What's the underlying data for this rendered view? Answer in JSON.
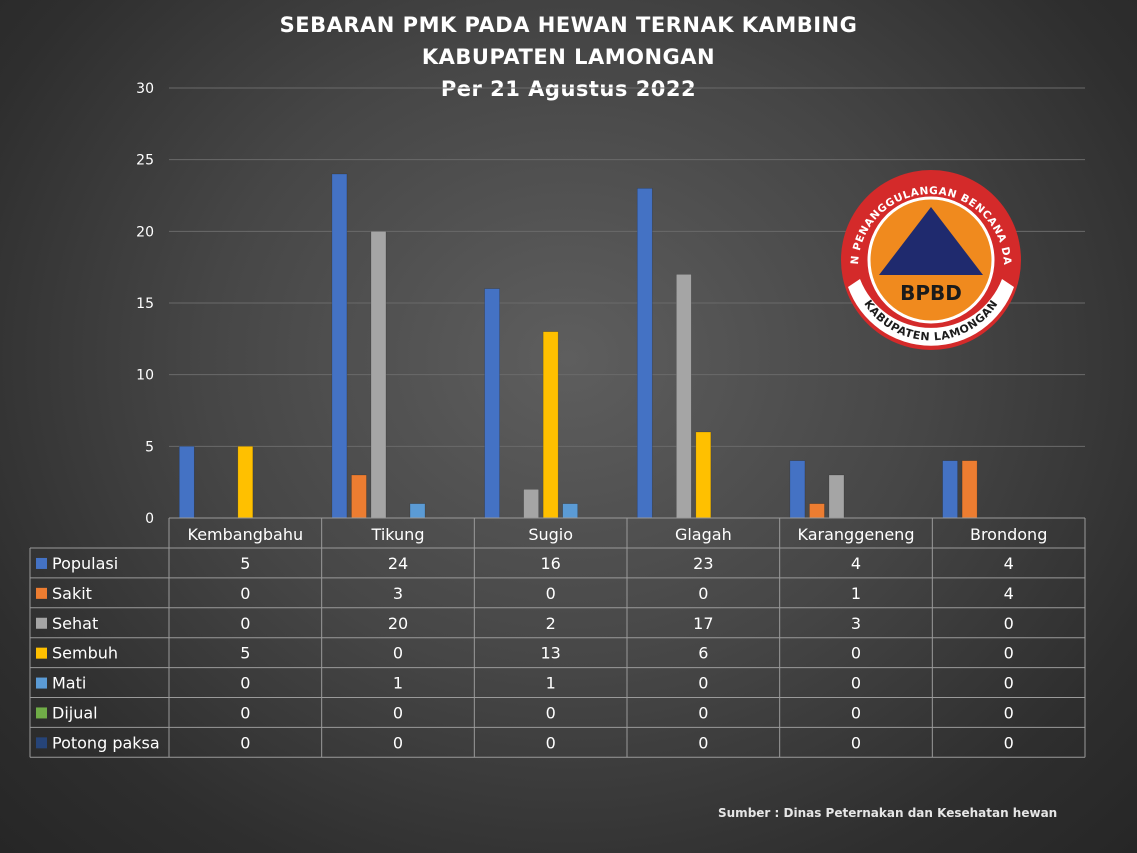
{
  "chart_data": {
    "type": "bar",
    "title_lines": [
      "SEBARAN PMK PADA HEWAN TERNAK KAMBING",
      "KABUPATEN LAMONGAN",
      "Per 21 Agustus 2022"
    ],
    "categories": [
      "Kembangbahu",
      "Tikung",
      "Sugio",
      "Glagah",
      "Karanggeneng",
      "Brondong"
    ],
    "series": [
      {
        "name": "Populasi",
        "color": "#4472c4",
        "values": [
          5,
          24,
          16,
          23,
          4,
          4
        ]
      },
      {
        "name": "Sakit",
        "color": "#ed7d31",
        "values": [
          0,
          3,
          0,
          0,
          1,
          4
        ]
      },
      {
        "name": "Sehat",
        "color": "#a5a5a5",
        "values": [
          0,
          20,
          2,
          17,
          3,
          0
        ]
      },
      {
        "name": "Sembuh",
        "color": "#ffc000",
        "values": [
          5,
          0,
          13,
          6,
          0,
          0
        ]
      },
      {
        "name": "Mati",
        "color": "#5b9bd5",
        "values": [
          0,
          1,
          1,
          0,
          0,
          0
        ]
      },
      {
        "name": "Dijual",
        "color": "#70ad47",
        "values": [
          0,
          0,
          0,
          0,
          0,
          0
        ]
      },
      {
        "name": "Potong paksa",
        "color": "#264478",
        "values": [
          0,
          0,
          0,
          0,
          0,
          0
        ]
      }
    ],
    "ylim": [
      0,
      30
    ],
    "yticks": [
      0,
      5,
      10,
      15,
      20,
      25,
      30
    ],
    "grid": true,
    "legend": "data-table"
  },
  "logo": {
    "ring_text_top": "BADAN PENANGGULANGAN BENCANA DAERAH",
    "ring_text_bottom": "KABUPATEN LAMONGAN",
    "center_text": "BPBD",
    "colors": {
      "ring": "#d42a2a",
      "inner": "#f08a1e",
      "triangle": "#1f2a6e"
    }
  },
  "source": "Sumber : Dinas Peternakan dan Kesehatan hewan"
}
